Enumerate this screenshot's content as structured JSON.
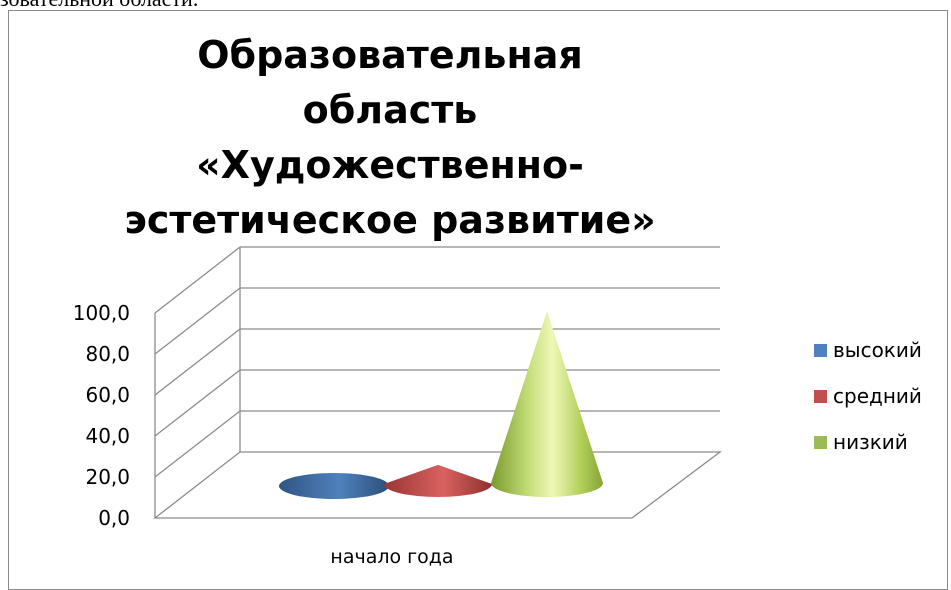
{
  "document": {
    "text_fragment": "зовательной области."
  },
  "chart_data": {
    "type": "bar",
    "bar_shape": "3d-cone",
    "title": "Образовательная область «Художественно-эстетическое развитие»",
    "categories": [
      "начало года"
    ],
    "series": [
      {
        "name": "высокий",
        "values": [
          0
        ],
        "color": "#4f81bd"
      },
      {
        "name": "средний",
        "values": [
          10
        ],
        "color": "#c0504d"
      },
      {
        "name": "низкий",
        "values": [
          90
        ],
        "color": "#9bbb59"
      }
    ],
    "yticks": [
      "0,0",
      "20,0",
      "40,0",
      "60,0",
      "80,0",
      "100,0"
    ],
    "ylim": [
      0,
      100
    ],
    "grid": true,
    "legend_position": "right"
  }
}
